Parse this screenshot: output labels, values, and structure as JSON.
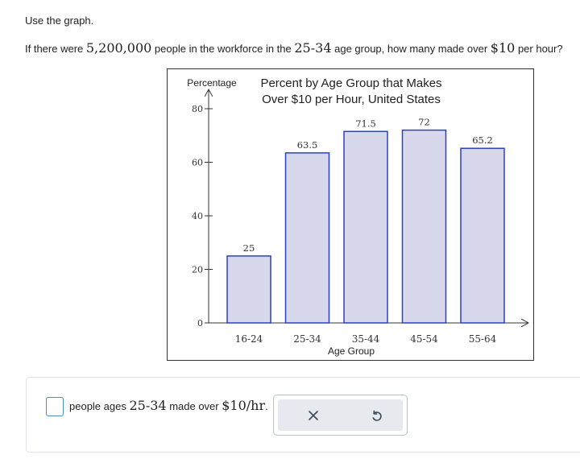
{
  "prompt": {
    "instruction": "Use the graph.",
    "question_part1": "If there were ",
    "question_num1": "5,200,000",
    "question_part2": " people in the workforce in the ",
    "question_num2": "25-34",
    "question_part3": " age group, how many made over ",
    "question_num3": "$10",
    "question_part4": " per hour?"
  },
  "answer": {
    "input_value": "",
    "text_part1": "people ages ",
    "text_num1": "25-34",
    "text_part2": " made over ",
    "text_num2": "$10/hr",
    "text_part3": "."
  },
  "toolbox": {
    "clear_icon": "x-icon",
    "undo_icon": "undo-icon"
  },
  "colors": {
    "bar_fill": "#d8d8ec",
    "bar_stroke": "#2b3fc8",
    "axis": "#333333",
    "answer_border": "#4a90c8"
  },
  "chart_data": {
    "type": "bar",
    "title_line1": "Percent by Age Group that Makes",
    "title_line2": "Over $10 per Hour, United States",
    "xlabel": "Age Group",
    "ylabel": "Percentage",
    "categories": [
      "16-24",
      "25-34",
      "35-44",
      "45-54",
      "55-64"
    ],
    "values": [
      25,
      63.5,
      71.5,
      72,
      65.2
    ],
    "value_labels": [
      "25",
      "63.5",
      "71.5",
      "72",
      "65.2"
    ],
    "yticks": [
      0,
      20,
      40,
      60,
      80
    ],
    "ylim": [
      0,
      80
    ],
    "grid": false,
    "legend": "none"
  }
}
